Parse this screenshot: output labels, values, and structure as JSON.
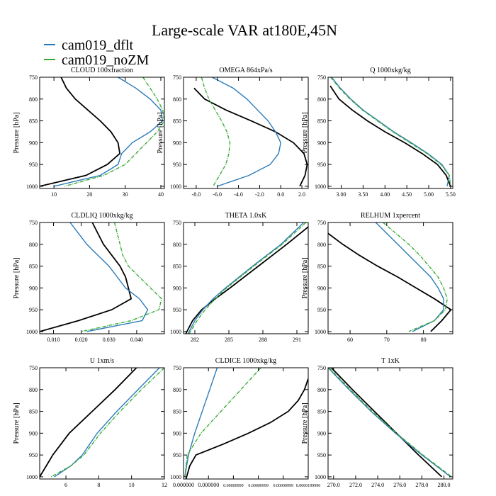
{
  "title": "Large-scale VAR at180E,45N",
  "legend": [
    {
      "name": "cam019_dflt",
      "color": "#2b7bba"
    },
    {
      "name": "cam019_noZM",
      "color": "#3aaa35"
    }
  ],
  "reference_color": "#000000",
  "chart_data": [
    {
      "type": "line",
      "title": "CLOUD  100xfraction",
      "ylabel": "Pressure [hPa]",
      "xlim": [
        6,
        41
      ],
      "ylim": [
        1005,
        750
      ],
      "xticks": [
        10,
        20,
        30,
        40
      ],
      "xtick_labels": [
        "10",
        "20",
        "30",
        "40"
      ],
      "yticks": [
        750,
        800,
        850,
        900,
        950,
        1000
      ],
      "ytick_labels": [
        "750",
        "800",
        "850",
        "900",
        "950",
        "1000"
      ],
      "series": [
        {
          "name": "reference",
          "p": [
            750,
            775,
            800,
            825,
            850,
            875,
            900,
            925,
            950,
            975,
            1000
          ],
          "x": [
            12,
            13.5,
            16,
            19.5,
            23,
            26,
            28,
            28.5,
            25,
            19,
            6
          ]
        },
        {
          "name": "cam019_dflt",
          "p": [
            750,
            775,
            800,
            825,
            850,
            875,
            900,
            925,
            950,
            975,
            1000
          ],
          "x": [
            28,
            33,
            37,
            40,
            40.5,
            37,
            32,
            29,
            28,
            23,
            10
          ]
        },
        {
          "name": "cam019_noZM",
          "p": [
            750,
            775,
            800,
            825,
            850,
            875,
            900,
            925,
            950,
            975,
            1000
          ],
          "x": [
            35,
            37,
            39,
            40.5,
            41,
            39,
            36,
            33,
            30,
            24,
            13
          ]
        }
      ]
    },
    {
      "type": "line",
      "title": "OMEGA  864xPa/s",
      "ylabel": "Pressure [hPa]",
      "xlim": [
        -9.2,
        2.6
      ],
      "ylim": [
        1005,
        750
      ],
      "xticks": [
        -8,
        -6,
        -4,
        -2,
        0,
        2
      ],
      "xtick_labels": [
        "-8.0",
        "-6.0",
        "-4.0",
        "-2.0",
        "0.0",
        "2.0"
      ],
      "yticks": [
        750,
        800,
        850,
        900,
        950,
        1000
      ],
      "ytick_labels": [
        "750",
        "800",
        "850",
        "900",
        "950",
        "1000"
      ],
      "series": [
        {
          "name": "reference",
          "p": [
            775,
            800,
            825,
            850,
            875,
            900,
            925,
            950,
            975,
            1000
          ],
          "x": [
            -8.2,
            -7.2,
            -5.2,
            -2.8,
            -0.5,
            1.2,
            2.2,
            2.5,
            2.3,
            1.8
          ]
        },
        {
          "name": "cam019_dflt",
          "p": [
            750,
            775,
            800,
            825,
            850,
            875,
            900,
            925,
            950,
            975,
            1000
          ],
          "x": [
            -6.5,
            -4.5,
            -3.2,
            -2.2,
            -1.2,
            -0.5,
            0,
            -0.2,
            -1,
            -3,
            -6
          ]
        },
        {
          "name": "cam019_noZM",
          "p": [
            750,
            775,
            800,
            825,
            850,
            875,
            900,
            925,
            950,
            975,
            1000
          ],
          "x": [
            -7.5,
            -7.2,
            -6.8,
            -6.2,
            -5.6,
            -5.1,
            -4.8,
            -4.9,
            -5.2,
            -5.8,
            -6.4
          ]
        }
      ]
    },
    {
      "type": "line",
      "title": "Q  1000xkg/kg",
      "ylabel": "Pressure [hPa]",
      "xlim": [
        2.7,
        5.55
      ],
      "ylim": [
        1005,
        750
      ],
      "xticks": [
        3,
        3.5,
        4,
        4.5,
        5,
        5.5
      ],
      "xtick_labels": [
        "3.00",
        "3.50",
        "4.00",
        "4.50",
        "5.00",
        "5.50"
      ],
      "yticks": [
        750,
        800,
        850,
        900,
        950,
        1000
      ],
      "ytick_labels": [
        "750",
        "800",
        "850",
        "900",
        "950",
        "1000"
      ],
      "series": [
        {
          "name": "reference",
          "p": [
            770,
            800,
            825,
            850,
            875,
            900,
            925,
            950,
            975,
            1000
          ],
          "x": [
            2.75,
            2.95,
            3.25,
            3.6,
            4,
            4.45,
            4.85,
            5.2,
            5.4,
            5.5
          ]
        },
        {
          "name": "cam019_dflt",
          "p": [
            750,
            775,
            800,
            825,
            850,
            875,
            900,
            925,
            950,
            975,
            1000
          ],
          "x": [
            2.78,
            2.98,
            3.22,
            3.5,
            3.85,
            4.2,
            4.6,
            4.98,
            5.3,
            5.47,
            5.42
          ]
        },
        {
          "name": "cam019_noZM",
          "p": [
            750,
            775,
            800,
            825,
            850,
            875,
            900,
            925,
            950,
            975,
            1000
          ],
          "x": [
            2.76,
            2.96,
            3.2,
            3.48,
            3.83,
            4.18,
            4.57,
            4.96,
            5.28,
            5.47,
            5.5
          ]
        }
      ]
    },
    {
      "type": "line",
      "title": "CLDLIQ  1000xkg/kg",
      "ylabel": "Pressure [hPa]",
      "xlim": [
        0.005,
        0.05
      ],
      "ylim": [
        1005,
        750
      ],
      "xticks": [
        0.01,
        0.02,
        0.03,
        0.04
      ],
      "xtick_labels": [
        "0.010",
        "0.020",
        "0.030",
        "0.040"
      ],
      "yticks": [
        750,
        800,
        850,
        900,
        950,
        1000
      ],
      "ytick_labels": [
        "750",
        "800",
        "850",
        "900",
        "950",
        "1000"
      ],
      "series": [
        {
          "name": "reference",
          "p": [
            750,
            775,
            800,
            825,
            850,
            875,
            900,
            925,
            950,
            975,
            1000
          ],
          "x": [
            0.024,
            0.026,
            0.028,
            0.031,
            0.034,
            0.036,
            0.037,
            0.038,
            0.031,
            0.019,
            0.005
          ]
        },
        {
          "name": "cam019_dflt",
          "p": [
            750,
            775,
            800,
            825,
            850,
            875,
            900,
            925,
            950,
            975,
            1000
          ],
          "x": [
            0.016,
            0.019,
            0.022,
            0.026,
            0.03,
            0.033,
            0.036,
            0.041,
            0.044,
            0.042,
            0.022
          ]
        },
        {
          "name": "cam019_noZM",
          "p": [
            750,
            775,
            800,
            825,
            850,
            875,
            900,
            925,
            950,
            975,
            1000
          ],
          "x": [
            0.032,
            0.033,
            0.034,
            0.035,
            0.037,
            0.041,
            0.045,
            0.049,
            0.048,
            0.038,
            0.02
          ]
        }
      ]
    },
    {
      "type": "line",
      "title": "THETA  1.0xK",
      "ylabel": "",
      "xlim": [
        281,
        292
      ],
      "ylim": [
        1005,
        750
      ],
      "xticks": [
        282,
        285,
        288,
        291
      ],
      "xtick_labels": [
        "282",
        "285",
        "288",
        "291"
      ],
      "yticks": [
        750,
        800,
        850,
        900,
        950,
        1000
      ],
      "ytick_labels": [
        "750",
        "800",
        "850",
        "900",
        "950",
        "1000"
      ],
      "series": [
        {
          "name": "reference",
          "p": [
            760,
            800,
            850,
            900,
            925,
            950,
            975,
            1005
          ],
          "x": [
            292,
            290.1,
            287.6,
            285.1,
            283.8,
            282.6,
            281.8,
            281.2
          ]
        },
        {
          "name": "cam019_dflt",
          "p": [
            750,
            800,
            850,
            900,
            925,
            950,
            975,
            1005
          ],
          "x": [
            291.6,
            289.6,
            287.1,
            284.7,
            283.6,
            282.7,
            282,
            281.4
          ]
        },
        {
          "name": "cam019_noZM",
          "p": [
            750,
            800,
            850,
            900,
            925,
            950,
            975,
            1005
          ],
          "x": [
            291.8,
            289.7,
            287.2,
            284.8,
            283.8,
            282.9,
            282.2,
            281.5
          ]
        }
      ]
    },
    {
      "type": "line",
      "title": "RELHUM  1xpercent",
      "ylabel": "Pressure [hPa]",
      "xlim": [
        54,
        88
      ],
      "ylim": [
        1005,
        750
      ],
      "xticks": [
        60,
        70,
        80
      ],
      "xtick_labels": [
        "60",
        "70",
        "80"
      ],
      "yticks": [
        750,
        800,
        850,
        900,
        950,
        1000
      ],
      "ytick_labels": [
        "750",
        "800",
        "850",
        "900",
        "950",
        "1000"
      ],
      "series": [
        {
          "name": "reference",
          "p": [
            775,
            800,
            825,
            850,
            875,
            900,
            925,
            950,
            975,
            1000
          ],
          "x": [
            54,
            58,
            62.5,
            67.5,
            73,
            78,
            83,
            87.5,
            85,
            82
          ]
        },
        {
          "name": "cam019_dflt",
          "p": [
            750,
            775,
            800,
            825,
            850,
            875,
            900,
            925,
            950,
            975,
            1000
          ],
          "x": [
            67,
            70,
            73,
            76,
            79,
            82,
            84,
            85.5,
            85.5,
            83,
            77
          ]
        },
        {
          "name": "cam019_noZM",
          "p": [
            750,
            775,
            800,
            825,
            850,
            875,
            900,
            925,
            950,
            975,
            1000
          ],
          "x": [
            69,
            72.5,
            76,
            79,
            81.5,
            84,
            85.5,
            86.5,
            86,
            83,
            76
          ]
        }
      ]
    },
    {
      "type": "line",
      "title": "U  1xm/s",
      "ylabel": "Pressure [hPa]",
      "xlim": [
        4.4,
        12
      ],
      "ylim": [
        1005,
        750
      ],
      "xticks": [
        6,
        8,
        10,
        12
      ],
      "xtick_labels": [
        "6",
        "8",
        "10",
        "12"
      ],
      "yticks": [
        750,
        800,
        850,
        900,
        950,
        1000
      ],
      "ytick_labels": [
        "750",
        "800",
        "850",
        "900",
        "950",
        "1000"
      ],
      "series": [
        {
          "name": "reference",
          "p": [
            750,
            800,
            850,
            900,
            950,
            975,
            1000
          ],
          "x": [
            10.3,
            9,
            7.6,
            6.2,
            5.2,
            4.8,
            4.4
          ]
        },
        {
          "name": "cam019_dflt",
          "p": [
            750,
            800,
            850,
            900,
            950,
            975,
            1000
          ],
          "x": [
            11.7,
            10.4,
            9.1,
            7.9,
            7,
            6.3,
            5.3
          ]
        },
        {
          "name": "cam019_noZM",
          "p": [
            750,
            800,
            850,
            900,
            950,
            975,
            1000
          ],
          "x": [
            12,
            10.6,
            9.3,
            8.1,
            7.1,
            6.3,
            5.1
          ]
        }
      ]
    },
    {
      "type": "line",
      "title": "CLDICE  1000xkg/kg",
      "ylabel": "",
      "xlim": [
        0,
        1
      ],
      "ylim": [
        1005,
        750
      ],
      "xticks": [
        0,
        0.2,
        0.4,
        0.6,
        0.8,
        1.0
      ],
      "xtick_labels": [
        "0.000000",
        "0.000000",
        "0.00000999",
        "0.00000999",
        "0.00000999",
        "0.0000199990"
      ],
      "yticks": [
        750,
        800,
        850,
        900,
        950,
        1000
      ],
      "ytick_labels": [
        "750",
        "800",
        "850",
        "900",
        "950",
        "1000"
      ],
      "series": [
        {
          "name": "reference",
          "p": [
            775,
            800,
            825,
            850,
            875,
            900,
            925,
            950,
            975,
            1005
          ],
          "x": [
            1,
            0.97,
            0.92,
            0.84,
            0.7,
            0.52,
            0.32,
            0.1,
            0.05,
            0.02
          ]
        },
        {
          "name": "cam019_dflt",
          "p": [
            750,
            800,
            850,
            900,
            950,
            1000
          ],
          "x": [
            0.27,
            0.21,
            0.15,
            0.09,
            0.04,
            0.01
          ]
        },
        {
          "name": "cam019_noZM",
          "p": [
            750,
            800,
            850,
            900,
            950,
            1000
          ],
          "x": [
            0.62,
            0.46,
            0.3,
            0.14,
            0.03,
            0.01
          ]
        }
      ]
    },
    {
      "type": "line",
      "title": "T  1xK",
      "ylabel": "Pressure [hPa]",
      "xlim": [
        269.5,
        280.8
      ],
      "ylim": [
        1005,
        750
      ],
      "xticks": [
        270,
        272,
        274,
        276,
        278,
        280
      ],
      "xtick_labels": [
        "270.0",
        "272.0",
        "274.0",
        "276.0",
        "278.0",
        "280.0"
      ],
      "yticks": [
        750,
        800,
        850,
        900,
        950,
        1000
      ],
      "ytick_labels": [
        "750",
        "800",
        "850",
        "900",
        "950",
        "1000"
      ],
      "series": [
        {
          "name": "reference",
          "p": [
            750,
            800,
            850,
            900,
            950,
            1000
          ],
          "x": [
            269.8,
            271.7,
            273.7,
            275.7,
            277.7,
            279.8
          ]
        },
        {
          "name": "cam019_dflt",
          "p": [
            750,
            800,
            850,
            900,
            950,
            1000
          ],
          "x": [
            269.5,
            271.4,
            273.4,
            275.6,
            278,
            280.6
          ]
        },
        {
          "name": "cam019_noZM",
          "p": [
            750,
            800,
            850,
            900,
            950,
            1000
          ],
          "x": [
            269.6,
            271.5,
            273.5,
            275.7,
            278.1,
            280.7
          ]
        }
      ]
    }
  ]
}
